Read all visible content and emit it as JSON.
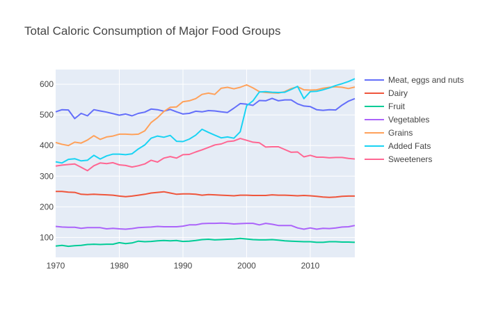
{
  "chart_data": {
    "type": "line",
    "title": "Total Caloric Consumption of Major Food Groups",
    "xlabel": "",
    "ylabel": "",
    "xlim": [
      1970,
      2017
    ],
    "ylim": [
      35,
      648
    ],
    "x_ticks": [
      1970,
      1980,
      1990,
      2000,
      2010
    ],
    "y_ticks": [
      100,
      200,
      300,
      400,
      500,
      600
    ],
    "grid": true,
    "legend_position": "right",
    "x": [
      1970,
      1971,
      1972,
      1973,
      1974,
      1975,
      1976,
      1977,
      1978,
      1979,
      1980,
      1981,
      1982,
      1983,
      1984,
      1985,
      1986,
      1987,
      1988,
      1989,
      1990,
      1991,
      1992,
      1993,
      1994,
      1995,
      1996,
      1997,
      1998,
      1999,
      2000,
      2001,
      2002,
      2003,
      2004,
      2005,
      2006,
      2007,
      2008,
      2009,
      2010,
      2011,
      2012,
      2013,
      2014,
      2015,
      2016,
      2017
    ],
    "series": [
      {
        "name": "Meat, eggs and nuts",
        "color": "#636efa",
        "values": [
          510,
          517,
          516,
          488,
          505,
          497,
          517,
          513,
          509,
          504,
          499,
          503,
          497,
          505,
          509,
          519,
          517,
          512,
          518,
          510,
          503,
          505,
          512,
          510,
          514,
          513,
          510,
          508,
          522,
          537,
          535,
          531,
          547,
          546,
          554,
          546,
          549,
          549,
          536,
          529,
          527,
          517,
          515,
          517,
          516,
          532,
          545,
          553
        ]
      },
      {
        "name": "Dairy",
        "color": "#ef553b",
        "values": [
          250,
          250,
          248,
          247,
          241,
          240,
          241,
          240,
          239,
          238,
          235,
          233,
          235,
          238,
          241,
          245,
          247,
          249,
          245,
          241,
          242,
          242,
          241,
          238,
          240,
          239,
          238,
          237,
          236,
          238,
          238,
          237,
          237,
          237,
          239,
          238,
          238,
          237,
          236,
          237,
          236,
          234,
          232,
          231,
          232,
          234,
          235,
          235
        ]
      },
      {
        "name": "Fruit",
        "color": "#00cc96",
        "values": [
          72,
          74,
          71,
          73,
          74,
          77,
          78,
          77,
          78,
          78,
          83,
          80,
          82,
          88,
          86,
          87,
          89,
          90,
          89,
          90,
          87,
          88,
          90,
          93,
          94,
          92,
          93,
          94,
          95,
          97,
          95,
          93,
          92,
          92,
          93,
          91,
          89,
          88,
          87,
          86,
          86,
          84,
          84,
          86,
          86,
          85,
          85,
          84
        ]
      },
      {
        "name": "Vegetables",
        "color": "#ab63fa",
        "values": [
          136,
          134,
          133,
          133,
          130,
          132,
          132,
          132,
          128,
          130,
          128,
          127,
          129,
          132,
          133,
          134,
          136,
          135,
          135,
          135,
          137,
          141,
          141,
          145,
          146,
          146,
          147,
          146,
          144,
          145,
          146,
          146,
          141,
          146,
          143,
          139,
          139,
          139,
          131,
          127,
          131,
          127,
          130,
          129,
          131,
          134,
          135,
          139
        ]
      },
      {
        "name": "Grains",
        "color": "#ffa15a",
        "values": [
          410,
          404,
          400,
          411,
          408,
          418,
          432,
          420,
          428,
          431,
          437,
          437,
          436,
          437,
          448,
          475,
          491,
          511,
          525,
          526,
          543,
          546,
          553,
          567,
          571,
          567,
          587,
          590,
          585,
          590,
          598,
          588,
          576,
          573,
          572,
          571,
          576,
          586,
          592,
          582,
          581,
          582,
          587,
          590,
          592,
          590,
          586,
          591
        ]
      },
      {
        "name": "Added Fats",
        "color": "#19d3f3",
        "values": [
          347,
          343,
          355,
          357,
          350,
          352,
          368,
          356,
          366,
          372,
          372,
          370,
          373,
          389,
          402,
          424,
          431,
          427,
          433,
          414,
          413,
          421,
          434,
          453,
          443,
          434,
          425,
          428,
          424,
          445,
          530,
          546,
          575,
          576,
          574,
          573,
          574,
          583,
          593,
          553,
          576,
          577,
          582,
          588,
          596,
          602,
          609,
          618
        ]
      },
      {
        "name": "Sweeteners",
        "color": "#ff6692",
        "values": [
          333,
          336,
          338,
          340,
          329,
          318,
          334,
          343,
          341,
          344,
          337,
          335,
          330,
          334,
          340,
          352,
          346,
          359,
          364,
          359,
          370,
          371,
          379,
          386,
          394,
          402,
          405,
          413,
          415,
          423,
          417,
          411,
          409,
          395,
          396,
          396,
          387,
          378,
          379,
          363,
          368,
          362,
          362,
          360,
          361,
          361,
          358,
          356
        ]
      }
    ]
  }
}
